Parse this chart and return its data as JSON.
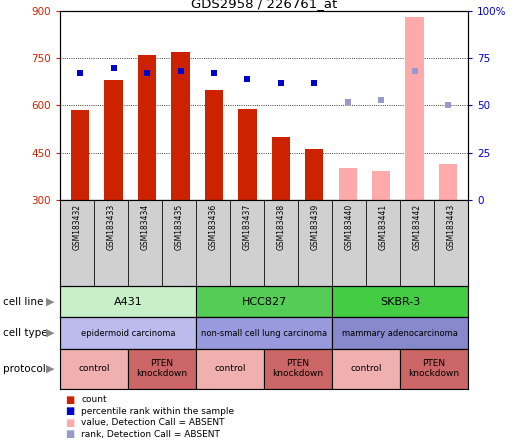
{
  "title": "GDS2958 / 226761_at",
  "samples": [
    "GSM183432",
    "GSM183433",
    "GSM183434",
    "GSM183435",
    "GSM183436",
    "GSM183437",
    "GSM183438",
    "GSM183439",
    "GSM183440",
    "GSM183441",
    "GSM183442",
    "GSM183443"
  ],
  "count_values": [
    585,
    680,
    760,
    770,
    650,
    590,
    500,
    460,
    null,
    null,
    null,
    null
  ],
  "count_absent": [
    null,
    null,
    null,
    null,
    null,
    null,
    null,
    null,
    400,
    390,
    880,
    415
  ],
  "rank_values": [
    67,
    70,
    67,
    68,
    67,
    64,
    62,
    62,
    null,
    null,
    null,
    null
  ],
  "rank_absent": [
    null,
    null,
    null,
    null,
    null,
    null,
    null,
    null,
    52,
    53,
    68,
    50
  ],
  "ylim_left": [
    300,
    900
  ],
  "ylim_right": [
    0,
    100
  ],
  "yticks_left": [
    300,
    450,
    600,
    750,
    900
  ],
  "yticks_right": [
    0,
    25,
    50,
    75,
    100
  ],
  "cell_line_groups": [
    {
      "label": "A431",
      "start": 0,
      "end": 3,
      "color": "#c8f0c8"
    },
    {
      "label": "HCC827",
      "start": 4,
      "end": 7,
      "color": "#55cc55"
    },
    {
      "label": "SKBR-3",
      "start": 8,
      "end": 11,
      "color": "#44cc44"
    }
  ],
  "cell_type_groups": [
    {
      "label": "epidermoid carcinoma",
      "start": 0,
      "end": 3,
      "color": "#bbbbee"
    },
    {
      "label": "non-small cell lung carcinoma",
      "start": 4,
      "end": 7,
      "color": "#9999dd"
    },
    {
      "label": "mammary adenocarcinoma",
      "start": 8,
      "end": 11,
      "color": "#8888cc"
    }
  ],
  "protocol_groups": [
    {
      "label": "control",
      "start": 0,
      "end": 1,
      "color": "#f0b0b0"
    },
    {
      "label": "PTEN\nknockdown",
      "start": 2,
      "end": 3,
      "color": "#cc6666"
    },
    {
      "label": "control",
      "start": 4,
      "end": 5,
      "color": "#f0b0b0"
    },
    {
      "label": "PTEN\nknockdown",
      "start": 6,
      "end": 7,
      "color": "#cc6666"
    },
    {
      "label": "control",
      "start": 8,
      "end": 9,
      "color": "#f0b0b0"
    },
    {
      "label": "PTEN\nknockdown",
      "start": 10,
      "end": 11,
      "color": "#cc6666"
    }
  ],
  "bar_width": 0.55,
  "count_color": "#cc2200",
  "count_absent_color": "#ffaaaa",
  "rank_color": "#0000cc",
  "rank_absent_color": "#9999cc",
  "label_color_left": "#cc2200",
  "label_color_right": "#0000cc",
  "grid_color": "#888888",
  "bg_color": "#ffffff",
  "legend_items": [
    {
      "label": "count",
      "color": "#cc2200"
    },
    {
      "label": "percentile rank within the sample",
      "color": "#0000cc"
    },
    {
      "label": "value, Detection Call = ABSENT",
      "color": "#ffaaaa"
    },
    {
      "label": "rank, Detection Call = ABSENT",
      "color": "#9999cc"
    }
  ]
}
